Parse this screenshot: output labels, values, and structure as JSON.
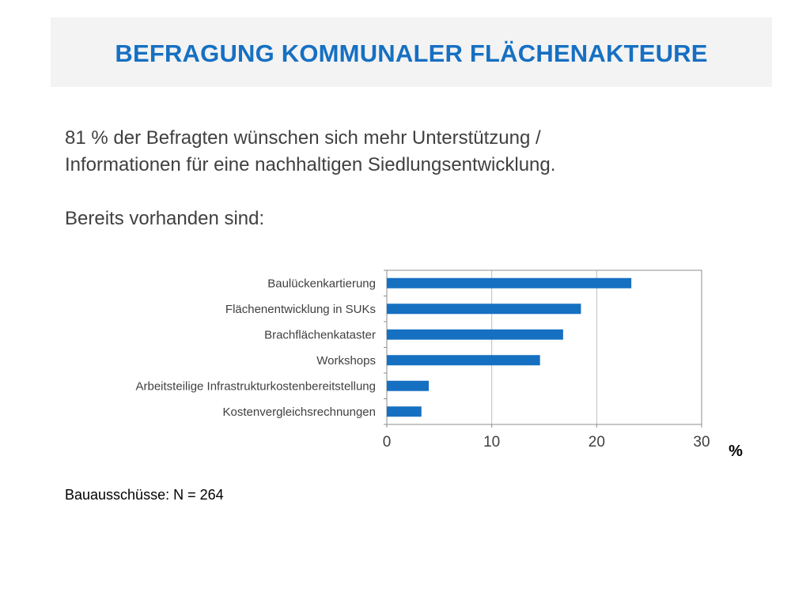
{
  "slide": {
    "title": "BEFRAGUNG KOMMUNALER FLÄCHENAKTEURE",
    "intro_line1": "81 % der Befragten wünschen sich mehr Unterstützung /",
    "intro_line2": "Informationen für eine nachhaltigen Siedlungsentwicklung.",
    "subhead": "Bereits vorhanden sind:",
    "note": "Bauausschüsse: N = 264"
  },
  "colors": {
    "title": "#1670c2",
    "bar": "#1670c2",
    "title_band": "#f3f3f3",
    "text": "#404040"
  },
  "chart_data": {
    "type": "bar",
    "orientation": "horizontal",
    "categories": [
      "Baulückenkartierung",
      "Flächenentwicklung in SUKs",
      "Brachflächenkataster",
      "Workshops",
      "Arbeitsteilige Infrastrukturkostenbereitstellung",
      "Kostenvergleichsrechnungen"
    ],
    "values": [
      23.3,
      18.5,
      16.8,
      14.6,
      4.0,
      3.3
    ],
    "xlabel": "%",
    "xlim": [
      0,
      30
    ],
    "xticks": [
      0,
      10,
      20,
      30
    ],
    "grid": true
  }
}
